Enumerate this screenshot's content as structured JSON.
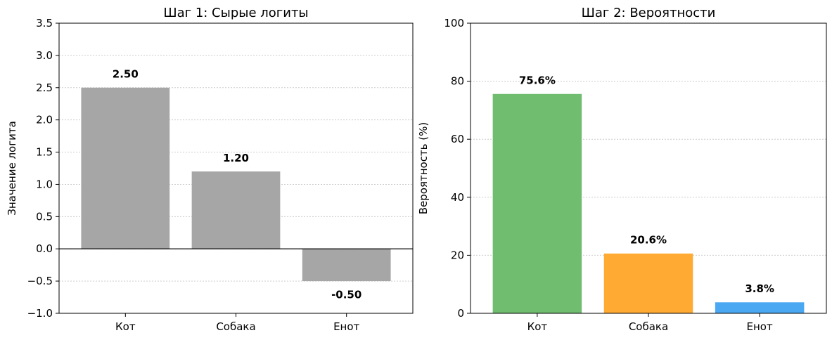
{
  "chart_data": [
    {
      "type": "bar",
      "title": "Шаг 1: Сырые логиты",
      "ylabel": "Значение логита",
      "xlabel": "",
      "categories": [
        "Кот",
        "Собака",
        "Енот"
      ],
      "values": [
        2.5,
        1.2,
        -0.5
      ],
      "value_labels": [
        "2.50",
        "1.20",
        "-0.50"
      ],
      "ylim": [
        -1.0,
        3.5
      ],
      "yticks": [
        -1.0,
        -0.5,
        0.0,
        0.5,
        1.0,
        1.5,
        2.0,
        2.5,
        3.0,
        3.5
      ],
      "ytick_labels": [
        "−1.0",
        "−0.5",
        "0.0",
        "0.5",
        "1.0",
        "1.5",
        "2.0",
        "2.5",
        "3.0",
        "3.5"
      ],
      "colors": [
        "#a6a6a6",
        "#a6a6a6",
        "#a6a6a6"
      ],
      "zero_line": true,
      "grid": "horizontal-dotted"
    },
    {
      "type": "bar",
      "title": "Шаг 2: Вероятности",
      "ylabel": "Вероятность (%)",
      "xlabel": "",
      "categories": [
        "Кот",
        "Собака",
        "Енот"
      ],
      "values": [
        75.6,
        20.6,
        3.8
      ],
      "value_labels": [
        "75.6%",
        "20.6%",
        "3.8%"
      ],
      "ylim": [
        0,
        100
      ],
      "yticks": [
        0,
        20,
        40,
        60,
        80,
        100
      ],
      "ytick_labels": [
        "0",
        "20",
        "40",
        "60",
        "80",
        "100"
      ],
      "colors": [
        "#70bd70",
        "#ffab33",
        "#4aa8f2"
      ],
      "zero_line": false,
      "grid": "horizontal-dotted"
    }
  ]
}
